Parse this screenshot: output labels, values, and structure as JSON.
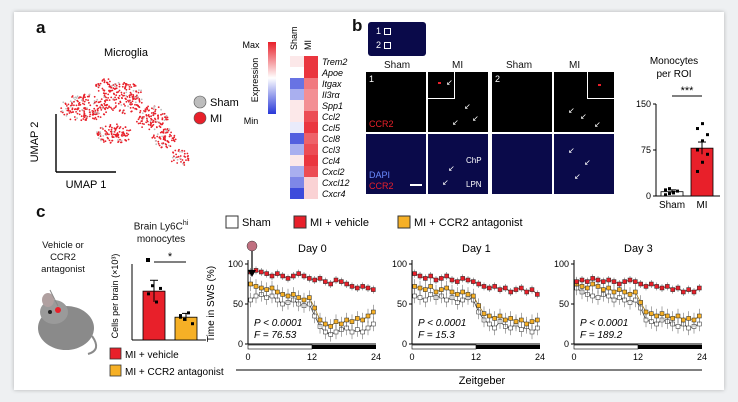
{
  "panels": {
    "a": {
      "label": "a",
      "umap": {
        "title": "Microglia",
        "xlabel": "UMAP 1",
        "ylabel": "UMAP 2",
        "legend": [
          {
            "name": "Sham",
            "color": "#bdbdbd"
          },
          {
            "name": "MI",
            "color": "#e8202a"
          }
        ]
      },
      "heatmap": {
        "scale_label": "Expression",
        "scale_max": "Max",
        "scale_min": "Min",
        "columns": [
          "Sham",
          "MI"
        ],
        "genes": [
          "Trem2",
          "Apoe",
          "Itgax",
          "Il3rα",
          "Spp1",
          "Ccl2",
          "Ccl5",
          "Ccl8",
          "Ccl3",
          "Ccl4",
          "Cxcl2",
          "Cxcl12",
          "Cxcr4"
        ],
        "sham_values": [
          0.55,
          0.5,
          0.15,
          0.3,
          0.55,
          0.55,
          0.45,
          0.1,
          0.3,
          0.55,
          0.3,
          0.2,
          0.05
        ],
        "mi_values": [
          0.95,
          0.95,
          0.8,
          0.75,
          0.75,
          0.9,
          0.95,
          0.85,
          0.9,
          0.95,
          0.9,
          0.6,
          0.6
        ]
      }
    },
    "b": {
      "label": "b",
      "roi_labels": [
        "1",
        "2"
      ],
      "column_labels": [
        "Sham",
        "MI",
        "Sham",
        "MI"
      ],
      "panel_numbers": [
        "1",
        "2"
      ],
      "stain_ccr2": "CCR2",
      "stain_dapi": "DAPI",
      "region_chp": "ChP",
      "region_lpn": "LPN",
      "bar": {
        "title_line1": "Monocytes",
        "title_line2": "per ROI",
        "ylim": [
          0,
          150
        ],
        "yticks": [
          0,
          75,
          150
        ],
        "categories": [
          "Sham",
          "MI"
        ],
        "values": [
          7,
          78
        ],
        "errors": [
          3,
          10
        ],
        "sham_points": [
          2,
          4,
          6,
          8,
          10,
          12,
          5
        ],
        "mi_points": [
          40,
          55,
          68,
          75,
          90,
          100,
          110,
          118
        ],
        "significance": "***"
      }
    },
    "c": {
      "label": "c",
      "mouse_text": [
        "Vehicle or",
        "CCR2",
        "antagonist"
      ],
      "brain_bar": {
        "title_line1": "Brain Ly6C",
        "title_sup": "hi",
        "title_line2": "monocytes",
        "ylabel": "Cells per brain (×10³)",
        "significance": "*",
        "values": [
          0.9,
          0.42
        ],
        "errors": [
          0.2,
          0.07
        ],
        "colors": [
          "#e8202a",
          "#f6b026"
        ]
      },
      "legend_bottom": [
        {
          "name": "MI + vehicle",
          "color": "#e8202a"
        },
        {
          "name": "MI + CCR2 antagonist",
          "color": "#f6b026"
        }
      ],
      "legend_top": [
        {
          "name": "Sham",
          "color": "#ffffff"
        },
        {
          "name": "MI + vehicle",
          "color": "#e8202a"
        },
        {
          "name": "MI + CCR2 antagonist",
          "color": "#f6b026"
        }
      ],
      "ylabel": "Time in SWS (%)",
      "xlabel": "Zeitgeber",
      "yticks": [
        0,
        50,
        100
      ],
      "xticks": [
        0,
        12,
        24
      ],
      "charts": [
        {
          "title": "Day 0",
          "p": "P < 0.0001",
          "f": "F = 76.53"
        },
        {
          "title": "Day 1",
          "p": "P < 0.0001",
          "f": "F = 15.3"
        },
        {
          "title": "Day 3",
          "p": "P < 0.0001",
          "f": "F = 189.2"
        }
      ]
    }
  },
  "chart_data": [
    {
      "type": "bar",
      "title": "Monocytes per ROI",
      "categories": [
        "Sham",
        "MI"
      ],
      "values": [
        7,
        78
      ],
      "ylim": [
        0,
        150
      ]
    },
    {
      "type": "bar",
      "title": "Brain Ly6Chi monocytes",
      "categories": [
        "MI + vehicle",
        "MI + CCR2 antagonist"
      ],
      "values": [
        0.9,
        0.42
      ],
      "ylabel": "Cells per brain (×10³)"
    },
    {
      "type": "line",
      "title": "Day 0",
      "xlabel": "Zeitgeber",
      "ylabel": "Time in SWS (%)",
      "xlim": [
        0,
        24
      ],
      "ylim": [
        0,
        100
      ],
      "x": [
        0.5,
        1.5,
        2.5,
        3.5,
        4.5,
        5.5,
        6.5,
        7.5,
        8.5,
        9.5,
        10.5,
        11.5,
        12.5,
        13.5,
        14.5,
        15.5,
        16.5,
        17.5,
        18.5,
        19.5,
        20.5,
        21.5,
        22.5,
        23.5
      ],
      "series": [
        {
          "name": "Sham",
          "values": [
            55,
            60,
            62,
            58,
            60,
            55,
            50,
            52,
            55,
            50,
            48,
            50,
            35,
            22,
            15,
            12,
            15,
            18,
            20,
            15,
            18,
            15,
            20,
            25
          ]
        },
        {
          "name": "MI + vehicle",
          "values": [
            90,
            92,
            90,
            88,
            85,
            88,
            85,
            82,
            85,
            88,
            85,
            82,
            80,
            82,
            78,
            75,
            80,
            78,
            75,
            72,
            70,
            72,
            70,
            68
          ]
        },
        {
          "name": "MI + CCR2 antagonist",
          "values": [
            75,
            72,
            70,
            68,
            70,
            65,
            62,
            60,
            62,
            58,
            55,
            58,
            45,
            30,
            25,
            22,
            28,
            25,
            30,
            28,
            32,
            30,
            35,
            40
          ]
        }
      ]
    },
    {
      "type": "line",
      "title": "Day 1",
      "xlabel": "Zeitgeber",
      "ylabel": "Time in SWS (%)",
      "xlim": [
        0,
        24
      ],
      "ylim": [
        0,
        100
      ],
      "x": [
        0.5,
        1.5,
        2.5,
        3.5,
        4.5,
        5.5,
        6.5,
        7.5,
        8.5,
        9.5,
        10.5,
        11.5,
        12.5,
        13.5,
        14.5,
        15.5,
        16.5,
        17.5,
        18.5,
        19.5,
        20.5,
        21.5,
        22.5,
        23.5
      ],
      "series": [
        {
          "name": "Sham",
          "values": [
            60,
            58,
            55,
            62,
            58,
            60,
            55,
            58,
            52,
            55,
            58,
            55,
            40,
            30,
            25,
            20,
            28,
            22,
            20,
            25,
            18,
            22,
            15,
            20
          ]
        },
        {
          "name": "MI + vehicle",
          "values": [
            88,
            85,
            82,
            85,
            80,
            82,
            85,
            80,
            78,
            82,
            80,
            78,
            75,
            72,
            70,
            72,
            68,
            70,
            65,
            68,
            70,
            65,
            68,
            62
          ]
        },
        {
          "name": "MI + CCR2 antagonist",
          "values": [
            72,
            70,
            68,
            72,
            65,
            68,
            70,
            65,
            62,
            65,
            62,
            60,
            48,
            38,
            35,
            32,
            35,
            30,
            32,
            28,
            30,
            25,
            28,
            30
          ]
        }
      ]
    },
    {
      "type": "line",
      "title": "Day 3",
      "xlabel": "Zeitgeber",
      "ylabel": "Time in SWS (%)",
      "xlim": [
        0,
        24
      ],
      "ylim": [
        0,
        100
      ],
      "x": [
        0.5,
        1.5,
        2.5,
        3.5,
        4.5,
        5.5,
        6.5,
        7.5,
        8.5,
        9.5,
        10.5,
        11.5,
        12.5,
        13.5,
        14.5,
        15.5,
        16.5,
        17.5,
        18.5,
        19.5,
        20.5,
        21.5,
        22.5,
        23.5
      ],
      "series": [
        {
          "name": "Sham",
          "values": [
            70,
            65,
            62,
            60,
            58,
            62,
            60,
            55,
            58,
            55,
            52,
            55,
            45,
            30,
            28,
            25,
            30,
            28,
            25,
            22,
            25,
            20,
            22,
            25
          ]
        },
        {
          "name": "MI + vehicle",
          "values": [
            78,
            80,
            78,
            82,
            80,
            78,
            80,
            78,
            75,
            78,
            80,
            78,
            75,
            72,
            75,
            72,
            70,
            72,
            68,
            70,
            65,
            68,
            65,
            70
          ]
        },
        {
          "name": "MI + CCR2 antagonist",
          "values": [
            75,
            72,
            70,
            75,
            72,
            68,
            70,
            65,
            68,
            65,
            62,
            65,
            52,
            40,
            38,
            35,
            38,
            35,
            32,
            35,
            30,
            32,
            30,
            35
          ]
        }
      ]
    }
  ]
}
